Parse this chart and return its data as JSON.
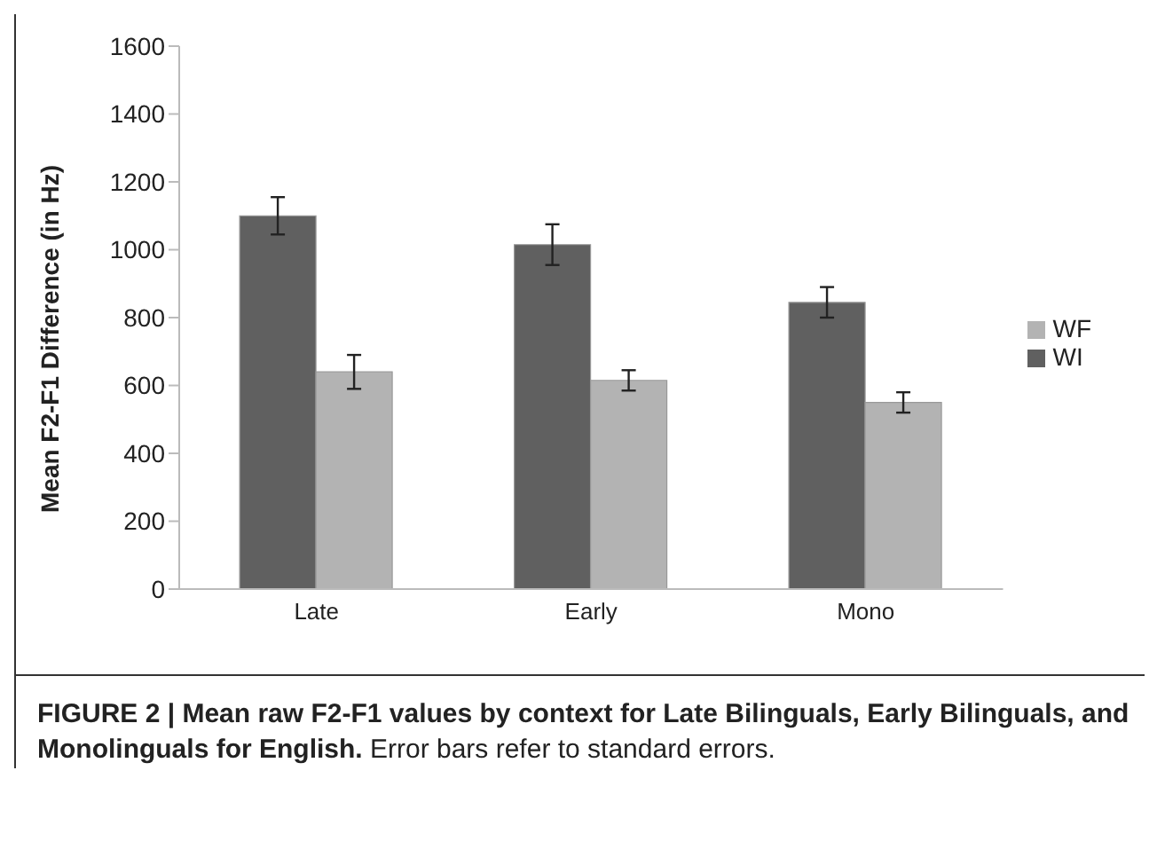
{
  "chart_data": {
    "type": "bar",
    "ylabel": "Mean F2-F1 Difference (in Hz)",
    "categories": [
      "Late",
      "Early",
      "Mono"
    ],
    "series": [
      {
        "name": "WI",
        "color": "#606060",
        "values": [
          1100,
          1015,
          845
        ],
        "errors": [
          55,
          60,
          45
        ]
      },
      {
        "name": "WF",
        "color": "#b3b3b3",
        "values": [
          640,
          615,
          550
        ],
        "errors": [
          50,
          30,
          30
        ]
      }
    ],
    "ylim": [
      0,
      1600
    ],
    "yticks": [
      0,
      200,
      400,
      600,
      800,
      1000,
      1200,
      1400,
      1600
    ],
    "grid": false,
    "legend": "right",
    "annotations": [
      "FIGURE 2 | Mean raw F2-F1 values by context for Late Bilinguals, Early Bilinguals, and Monolinguals for English.",
      "Error bars refer to standard errors."
    ]
  }
}
